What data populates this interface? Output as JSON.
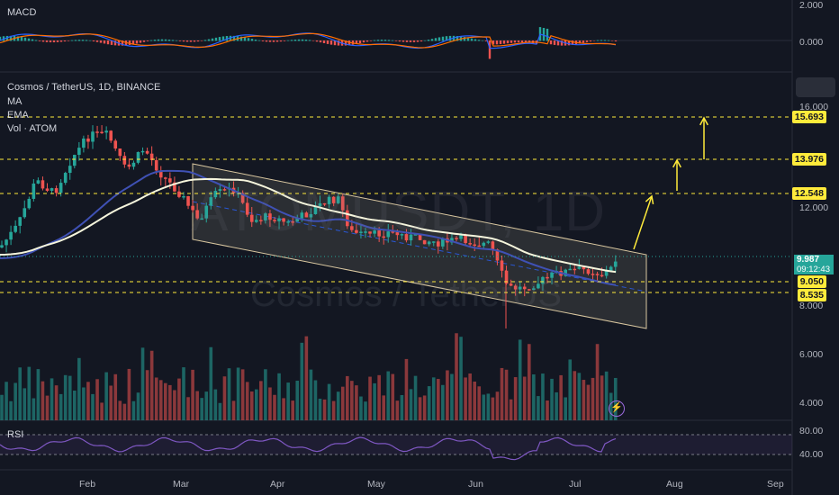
{
  "symbol": {
    "title": "Cosmos / TetherUS, 1D, BINANCE",
    "ticker_watermark": "ATOMUSDT, 1D",
    "name_watermark": "Cosmos / TetherUS"
  },
  "indicators": {
    "ma": "MA",
    "ema": "EMA",
    "vol": "Vol · ATOM",
    "macd": "MACD",
    "rsi": "RSI"
  },
  "price_axis": [
    "16.000",
    "12.000",
    "8.000",
    "6.000",
    "4.000"
  ],
  "macd_axis": [
    "2.000",
    "0.000"
  ],
  "rsi_axis": [
    "80.00",
    "40.00"
  ],
  "x_axis": [
    "Feb",
    "Mar",
    "Apr",
    "May",
    "Jun",
    "Jul",
    "Aug",
    "Sep"
  ],
  "levels": {
    "l1": "15.693",
    "l2": "13.976",
    "l3": "12.548",
    "l4": "9.050",
    "l5": "8.535"
  },
  "current": {
    "price": "9.987",
    "countdown": "09:12:43"
  },
  "colors": {
    "background": "#131722",
    "up": "#26a69a",
    "down": "#ef5350",
    "level_line": "#ffeb3b",
    "ma_line": "#3f51b5",
    "ema_line": "#f5f5dc",
    "rsi_line": "#7e57c2",
    "channel": "#d9c7a0"
  },
  "icons": {
    "alert": "lightning-icon"
  }
}
